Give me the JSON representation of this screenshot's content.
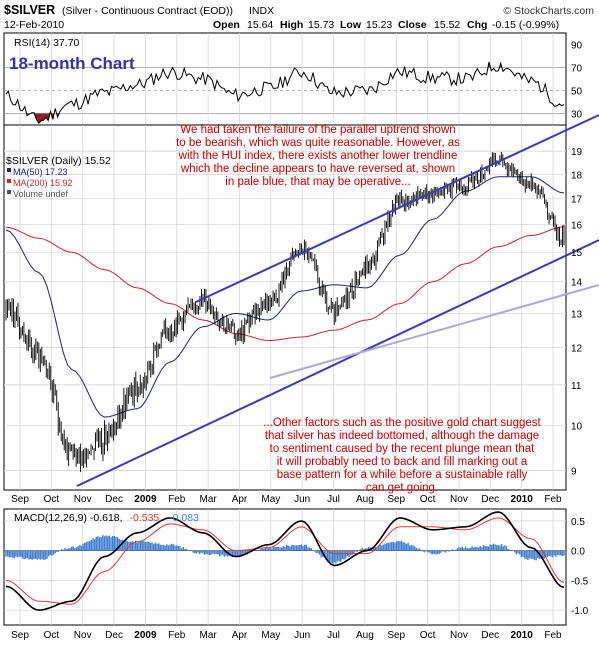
{
  "header": {
    "symbol": "$SILVER",
    "description": "(Silver - Continuous Contract (EOD))",
    "exchange": "INDX",
    "brand": "© StockCharts.com",
    "date": "12-Feb-2010",
    "open_label": "Open",
    "open": "15.64",
    "high_label": "High",
    "high": "15.73",
    "low_label": "Low",
    "low": "15.23",
    "close_label": "Close",
    "close": "15.52",
    "chg_label": "Chg",
    "chg": "-0.15 (-0.99%)"
  },
  "rsi_panel": {
    "label": "RSI(14) 37.70",
    "subtitle": "18-month Chart",
    "ticks": [
      "90",
      "70",
      "50",
      "30"
    ]
  },
  "price_panel": {
    "legend": [
      {
        "text": "$SILVER (Daily) 15.52",
        "color": "#000000"
      },
      {
        "text": "MA(50) 17.23",
        "color": "#1a237e"
      },
      {
        "text": "MA(200) 15.92",
        "color": "#c62828"
      },
      {
        "text": "Volume undef",
        "color": "#555555"
      }
    ],
    "annotation_top": [
      "We had taken the failure of the parallel uptrend shown",
      "to be bearish, which was quite reasonable. However, as",
      "with the HUI index, there exists another lower trendline",
      "which the decline appears to have reversed at, shown",
      "in pale blue, that may be operative..."
    ],
    "annotation_bottom": [
      "...Other factors such as the positive gold chart suggest",
      "that silver has indeed bottomed, although the damage",
      "to sentiment caused by the recent plunge mean that",
      "it will probably need to back and fill marking out a",
      "base pattern for a while before a sustainable rally",
      "can get going."
    ]
  },
  "macd_panel": {
    "label_main": "MACD(12,26,9) -0.618,",
    "label_signal": "-0.535,",
    "label_hist": "-0.083",
    "ticks": [
      "0.5",
      "0.0",
      "-0.5",
      "-1.0"
    ]
  },
  "months": [
    "Sep",
    "Oct",
    "Nov",
    "Dec",
    "2009",
    "Feb",
    "Mar",
    "Apr",
    "May",
    "Jun",
    "Jul",
    "Aug",
    "Sep",
    "Oct",
    "Nov",
    "Dec",
    "2010",
    "Feb"
  ],
  "colors": {
    "annotation": "#cc0000",
    "subtitle": "#3333aa",
    "channel": "#3b3bb8",
    "pale_trendline": "#a9a9dd",
    "ma50": "#1a237e",
    "ma200": "#c62828",
    "macd": "#000000",
    "signal": "#e53935",
    "histogram": "#3f7fd0",
    "rsi_fill_high": "#2e7d32",
    "rsi_fill_low": "#8d2020"
  },
  "chart_data": [
    {
      "type": "line",
      "title": "RSI(14) 37.70",
      "x": [
        "Sep",
        "Oct",
        "Nov",
        "Dec",
        "2009",
        "Feb",
        "Mar",
        "Apr",
        "May",
        "Jun",
        "Jul",
        "Aug",
        "Sep",
        "Oct",
        "Nov",
        "Dec",
        "2010",
        "Feb"
      ],
      "series": [
        {
          "name": "RSI(14)",
          "values": [
            45,
            24,
            38,
            48,
            55,
            66,
            60,
            46,
            52,
            66,
            48,
            50,
            66,
            61,
            60,
            72,
            58,
            37.7
          ]
        }
      ],
      "ylim": [
        20,
        100
      ],
      "yticks": [
        90,
        70,
        50,
        30
      ],
      "reference_lines": [
        70,
        50,
        30
      ]
    },
    {
      "type": "line",
      "title": "$SILVER (Daily) 15.52",
      "x": [
        "Sep",
        "Oct",
        "Nov",
        "Dec",
        "2009",
        "Feb",
        "Mar",
        "Apr",
        "May",
        "Jun",
        "Jul",
        "Aug",
        "Sep",
        "Oct",
        "Nov",
        "Dec",
        "2010",
        "Feb"
      ],
      "series": [
        {
          "name": "$SILVER (Daily) 15.52",
          "values": [
            13.2,
            11.8,
            9.3,
            9.7,
            10.9,
            12.6,
            13.4,
            12.4,
            13.4,
            15.1,
            13.0,
            14.5,
            16.9,
            17.2,
            17.6,
            18.6,
            17.6,
            15.52
          ]
        },
        {
          "name": "MA(50) 17.23",
          "values": [
            15.8,
            14.3,
            11.4,
            10.2,
            10.4,
            11.6,
            12.6,
            13.0,
            12.8,
            13.7,
            13.9,
            13.8,
            14.9,
            16.2,
            17.3,
            17.9,
            17.9,
            17.23
          ]
        },
        {
          "name": "MA(200) 15.92",
          "values": [
            15.9,
            15.5,
            15.0,
            14.4,
            13.8,
            13.3,
            12.8,
            12.4,
            12.2,
            12.3,
            12.5,
            12.8,
            13.3,
            14.0,
            14.6,
            15.2,
            15.6,
            15.92
          ]
        }
      ],
      "ylim": [
        8.6,
        20.2
      ],
      "yticks": [
        19,
        18,
        17,
        16,
        15,
        14,
        13,
        12,
        11,
        10,
        9
      ],
      "scale": "log"
    },
    {
      "type": "line",
      "title": "MACD(12,26,9) -0.618, -0.535, -0.083",
      "x": [
        "Sep",
        "Oct",
        "Nov",
        "Dec",
        "2009",
        "Feb",
        "Mar",
        "Apr",
        "May",
        "Jun",
        "Jul",
        "Aug",
        "Sep",
        "Oct",
        "Nov",
        "Dec",
        "2010",
        "Feb"
      ],
      "series": [
        {
          "name": "MACD",
          "values": [
            -0.6,
            -1.0,
            -0.85,
            -0.1,
            0.3,
            0.55,
            0.3,
            -0.1,
            0.1,
            0.5,
            -0.25,
            0.0,
            0.55,
            0.35,
            0.4,
            0.65,
            0.05,
            -0.618
          ]
        },
        {
          "name": "Signal",
          "values": [
            -0.5,
            -0.85,
            -0.9,
            -0.35,
            0.15,
            0.45,
            0.35,
            0.0,
            0.05,
            0.4,
            -0.05,
            -0.05,
            0.4,
            0.4,
            0.35,
            0.55,
            0.2,
            -0.535
          ]
        },
        {
          "name": "Histogram",
          "values": [
            -0.1,
            -0.15,
            0.05,
            0.25,
            0.15,
            0.1,
            -0.05,
            -0.1,
            0.05,
            0.1,
            -0.2,
            0.05,
            0.15,
            -0.05,
            0.05,
            0.1,
            -0.15,
            -0.083
          ]
        }
      ],
      "ylim": [
        -1.25,
        0.7
      ],
      "yticks": [
        0.5,
        0.0,
        -0.5,
        -1.0
      ]
    }
  ]
}
